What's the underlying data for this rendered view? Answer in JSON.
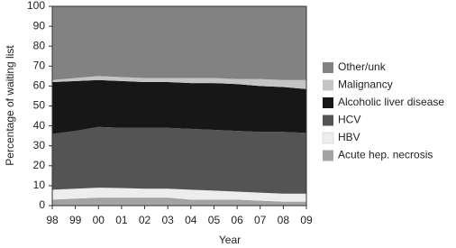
{
  "chart_data": {
    "type": "stacked-area",
    "x_label": "Year",
    "y_label": "Percentage of waiting list",
    "categories": [
      "98",
      "99",
      "00",
      "01",
      "02",
      "03",
      "04",
      "05",
      "06",
      "07",
      "08",
      "09"
    ],
    "ylim": [
      0,
      100
    ],
    "yticks": [
      0,
      10,
      20,
      30,
      40,
      50,
      60,
      70,
      80,
      90,
      100
    ],
    "legend": "right",
    "series": [
      {
        "name": "Acute hep. necrosis",
        "color": "#a3a3a3",
        "values": [
          3,
          3.5,
          4,
          4,
          4,
          4,
          3,
          3,
          3,
          2.5,
          2,
          2
        ]
      },
      {
        "name": "HBV",
        "color": "#ededed",
        "values": [
          5,
          5,
          5,
          4.8,
          4.5,
          4.5,
          5,
          4.5,
          4,
          4,
          4,
          4
        ]
      },
      {
        "name": "HCV",
        "color": "#545454",
        "values": [
          28,
          29,
          30.5,
          30.2,
          30.5,
          30.5,
          30.5,
          30.5,
          30.5,
          30.5,
          31,
          30.5
        ]
      },
      {
        "name": "Alcoholic liver disease",
        "color": "#171717",
        "values": [
          26,
          25,
          23.5,
          23.5,
          23,
          23,
          23,
          23.5,
          23.5,
          23,
          22.5,
          22
        ]
      },
      {
        "name": "Malignancy",
        "color": "#c4c4c4",
        "values": [
          1,
          1.5,
          2,
          2,
          2,
          2,
          2.5,
          2.5,
          2.5,
          3.5,
          3.5,
          4.5
        ]
      },
      {
        "name": "Other/unk",
        "color": "#828282",
        "values": [
          37,
          36,
          35,
          35.5,
          36,
          36,
          36,
          36,
          36.5,
          36.5,
          37,
          37
        ]
      }
    ]
  }
}
